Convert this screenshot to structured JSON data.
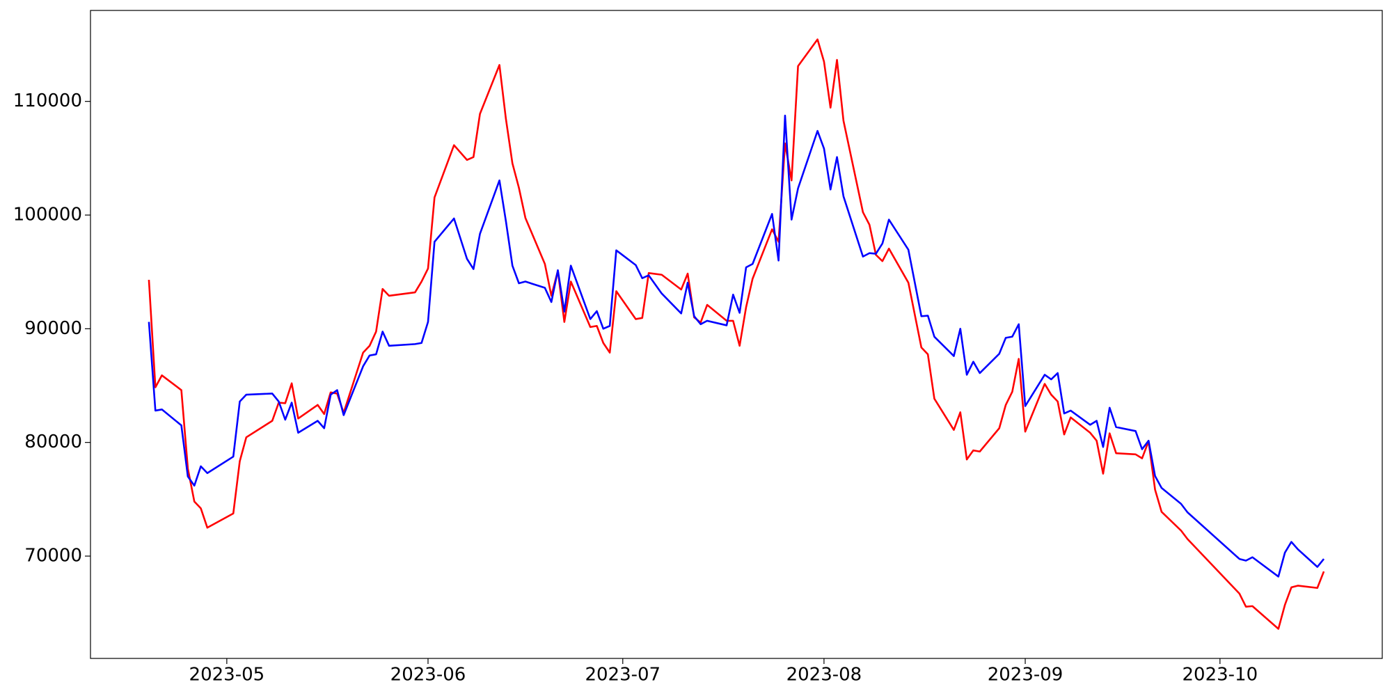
{
  "chart_data": {
    "type": "line",
    "x": [
      "2023-04-19",
      "2023-04-20",
      "2023-04-21",
      "2023-04-24",
      "2023-04-25",
      "2023-04-26",
      "2023-04-27",
      "2023-04-28",
      "2023-05-02",
      "2023-05-03",
      "2023-05-04",
      "2023-05-08",
      "2023-05-09",
      "2023-05-10",
      "2023-05-11",
      "2023-05-12",
      "2023-05-15",
      "2023-05-16",
      "2023-05-17",
      "2023-05-18",
      "2023-05-19",
      "2023-05-22",
      "2023-05-23",
      "2023-05-24",
      "2023-05-25",
      "2023-05-26",
      "2023-05-30",
      "2023-05-31",
      "2023-06-01",
      "2023-06-02",
      "2023-06-05",
      "2023-06-07",
      "2023-06-08",
      "2023-06-09",
      "2023-06-12",
      "2023-06-13",
      "2023-06-14",
      "2023-06-15",
      "2023-06-16",
      "2023-06-19",
      "2023-06-20",
      "2023-06-21",
      "2023-06-22",
      "2023-06-23",
      "2023-06-26",
      "2023-06-27",
      "2023-06-28",
      "2023-06-29",
      "2023-06-30",
      "2023-07-03",
      "2023-07-04",
      "2023-07-05",
      "2023-07-07",
      "2023-07-10",
      "2023-07-11",
      "2023-07-12",
      "2023-07-13",
      "2023-07-14",
      "2023-07-17",
      "2023-07-18",
      "2023-07-19",
      "2023-07-20",
      "2023-07-21",
      "2023-07-24",
      "2023-07-25",
      "2023-07-26",
      "2023-07-27",
      "2023-07-28",
      "2023-07-31",
      "2023-08-01",
      "2023-08-02",
      "2023-08-03",
      "2023-08-04",
      "2023-08-07",
      "2023-08-08",
      "2023-08-09",
      "2023-08-10",
      "2023-08-11",
      "2023-08-14",
      "2023-08-16",
      "2023-08-17",
      "2023-08-18",
      "2023-08-21",
      "2023-08-22",
      "2023-08-23",
      "2023-08-24",
      "2023-08-25",
      "2023-08-28",
      "2023-08-29",
      "2023-08-30",
      "2023-08-31",
      "2023-09-01",
      "2023-09-04",
      "2023-09-05",
      "2023-09-06",
      "2023-09-07",
      "2023-09-08",
      "2023-09-11",
      "2023-09-12",
      "2023-09-13",
      "2023-09-14",
      "2023-09-15",
      "2023-09-18",
      "2023-09-19",
      "2023-09-20",
      "2023-09-21",
      "2023-09-22",
      "2023-09-25",
      "2023-09-26",
      "2023-10-04",
      "2023-10-05",
      "2023-10-06",
      "2023-10-10",
      "2023-10-11",
      "2023-10-12",
      "2023-10-13",
      "2023-10-16",
      "2023-10-17"
    ],
    "series": [
      {
        "color": "#ff0000",
        "values": [
          94300,
          84850,
          85900,
          84600,
          77700,
          74800,
          74200,
          72500,
          73750,
          78350,
          80450,
          81900,
          83500,
          83450,
          85200,
          82100,
          83300,
          82500,
          84400,
          84300,
          82600,
          87900,
          88500,
          89750,
          93500,
          92900,
          93200,
          94150,
          95300,
          101550,
          106150,
          104850,
          105100,
          108900,
          113200,
          108450,
          104550,
          102400,
          99750,
          95700,
          92900,
          95100,
          90600,
          94150,
          90150,
          90250,
          88750,
          87900,
          93300,
          90850,
          90950,
          94900,
          94750,
          93450,
          94850,
          91000,
          90550,
          92100,
          90700,
          90700,
          88500,
          91900,
          94400,
          98750,
          97650,
          106300,
          103050,
          113100,
          115450,
          113500,
          109450,
          113650,
          108300,
          100250,
          99150,
          96500,
          95950,
          97050,
          94050,
          88350,
          87750,
          83850,
          81100,
          82650,
          78500,
          79300,
          79200,
          81250,
          83300,
          84450,
          87350,
          80950,
          85150,
          84200,
          83600,
          80700,
          82200,
          80850,
          80150,
          77250,
          80800,
          79050,
          78950,
          78600,
          80100,
          75850,
          73900,
          72250,
          71500,
          66700,
          65550,
          65600,
          63600,
          65700,
          67250,
          67400,
          67200,
          68650
        ]
      },
      {
        "color": "#0000ff",
        "values": [
          90600,
          82800,
          82900,
          81500,
          77000,
          76200,
          77900,
          77300,
          78750,
          83600,
          84200,
          84300,
          83600,
          82000,
          83500,
          80850,
          81900,
          81250,
          84200,
          84600,
          82400,
          86700,
          87650,
          87750,
          89750,
          88500,
          88650,
          88750,
          90600,
          97650,
          99700,
          96150,
          95250,
          98350,
          103050,
          99450,
          95550,
          94000,
          94150,
          93600,
          92350,
          95150,
          91500,
          95550,
          90850,
          91550,
          90000,
          90250,
          96900,
          95600,
          94450,
          94700,
          93100,
          91350,
          94050,
          91100,
          90400,
          90700,
          90300,
          93000,
          91400,
          95400,
          95700,
          100100,
          96000,
          108750,
          99600,
          102350,
          107400,
          105850,
          102250,
          105100,
          101650,
          96350,
          96650,
          96600,
          97500,
          99600,
          96950,
          91100,
          91150,
          89300,
          87600,
          90000,
          85950,
          87100,
          86100,
          87800,
          89200,
          89300,
          90400,
          83200,
          85950,
          85550,
          86100,
          82550,
          82800,
          81550,
          81900,
          79600,
          83050,
          81350,
          81000,
          79400,
          80150,
          77050,
          76000,
          74600,
          73850,
          69750,
          69600,
          69900,
          68200,
          70300,
          71250,
          70600,
          69050,
          69750
        ]
      }
    ],
    "xlim": [
      "2023-04-10",
      "2023-10-26"
    ],
    "xticks": [
      {
        "value": "2023-05-01",
        "label": "2023-05"
      },
      {
        "value": "2023-06-01",
        "label": "2023-06"
      },
      {
        "value": "2023-07-01",
        "label": "2023-07"
      },
      {
        "value": "2023-08-01",
        "label": "2023-08"
      },
      {
        "value": "2023-09-01",
        "label": "2023-09"
      },
      {
        "value": "2023-10-01",
        "label": "2023-10"
      }
    ],
    "ylim": [
      61000,
      118000
    ],
    "yticks": [
      70000,
      80000,
      90000,
      100000,
      110000
    ]
  }
}
